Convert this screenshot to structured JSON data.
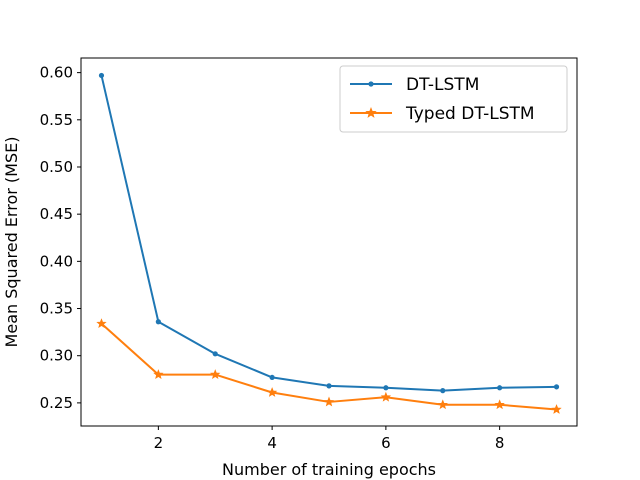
{
  "chart_data": {
    "type": "line",
    "title": "",
    "xlabel": "Number of training epochs",
    "ylabel": "Mean Squared Error (MSE)",
    "xlim": [
      0.64,
      9.36
    ],
    "ylim": [
      0.2255,
      0.6155
    ],
    "x": [
      1,
      2,
      3,
      4,
      5,
      6,
      7,
      8,
      9
    ],
    "x_ticks": [
      2,
      4,
      6,
      8
    ],
    "x_tick_labels": [
      "2",
      "4",
      "6",
      "8"
    ],
    "y_ticks": [
      0.25,
      0.3,
      0.35,
      0.4,
      0.45,
      0.5,
      0.55,
      0.6
    ],
    "y_tick_labels": [
      "0.25",
      "0.30",
      "0.35",
      "0.40",
      "0.45",
      "0.50",
      "0.55",
      "0.60"
    ],
    "grid": false,
    "legend_position": "top-right",
    "series": [
      {
        "name": "DT-LSTM",
        "color": "#1f77b4",
        "marker": "circle",
        "values": [
          0.597,
          0.336,
          0.302,
          0.277,
          0.268,
          0.266,
          0.263,
          0.266,
          0.267
        ]
      },
      {
        "name": "Typed DT-LSTM",
        "color": "#ff7f0e",
        "marker": "star",
        "values": [
          0.334,
          0.28,
          0.28,
          0.261,
          0.251,
          0.256,
          0.248,
          0.248,
          0.243
        ]
      }
    ]
  }
}
